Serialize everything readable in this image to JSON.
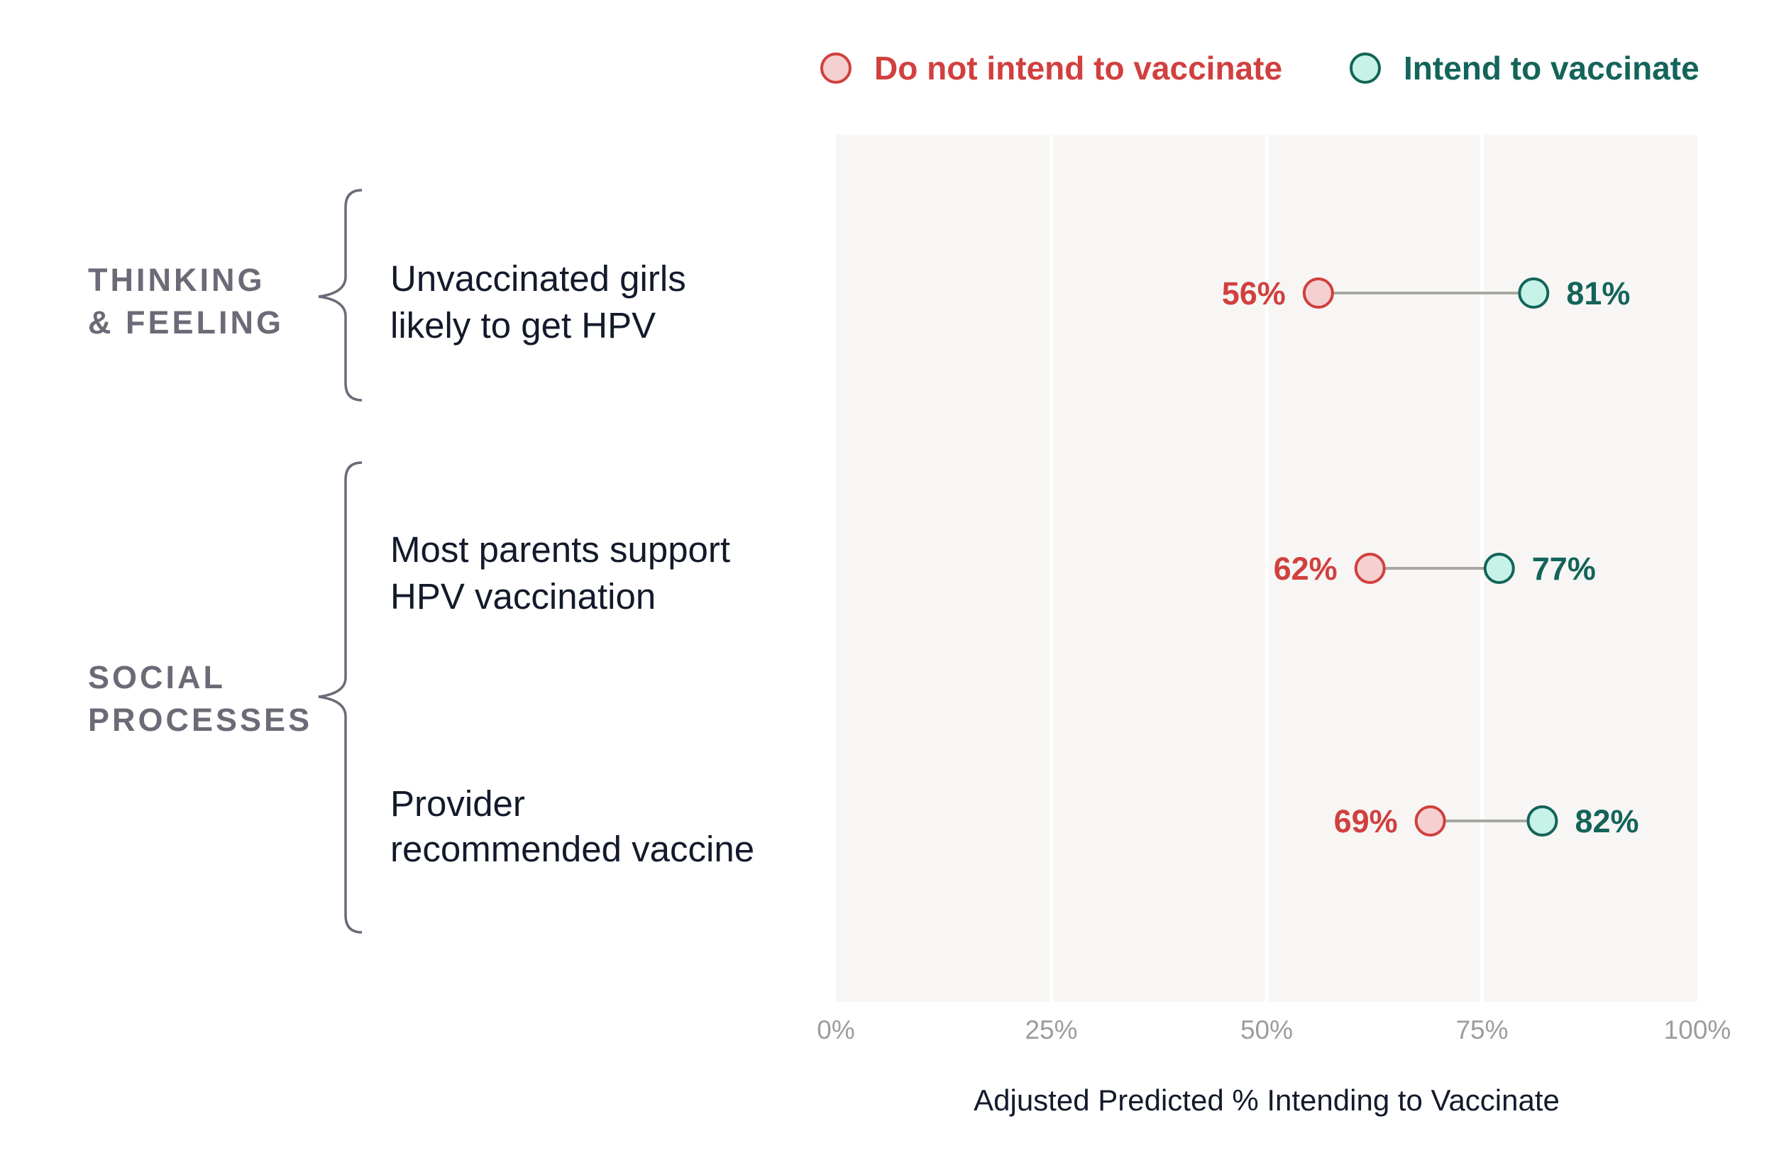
{
  "legend": [
    {
      "label": "Do not intend to vaccinate",
      "color": "#d1403f",
      "fill": "#f5d0d1"
    },
    {
      "label": "Intend to vaccinate",
      "color": "#14645a",
      "fill": "#c7f2e8"
    }
  ],
  "groups": [
    {
      "lines": [
        "THINKING",
        "& FEELING"
      ]
    },
    {
      "lines": [
        "SOCIAL",
        "PROCESSES"
      ]
    }
  ],
  "chart_data": {
    "type": "dumbbell",
    "xlabel": "Adjusted Predicted % Intending to Vaccinate",
    "xlim": [
      0,
      100
    ],
    "x_ticks": [
      0,
      25,
      50,
      75,
      100
    ],
    "x_tick_labels": [
      "0%",
      "25%",
      "50%",
      "75%",
      "100%"
    ],
    "grid": true,
    "legend_position": "top-right",
    "series": [
      {
        "name": "Do not intend to vaccinate",
        "color": "#d1403f"
      },
      {
        "name": "Intend to vaccinate",
        "color": "#14645a"
      }
    ],
    "rows": [
      {
        "lines": [
          "Unvaccinated girls",
          "likely to get HPV"
        ],
        "group": "THINKING & FEELING",
        "not_intend": 56,
        "not_intend_label": "56%",
        "intend": 81,
        "intend_label": "81%"
      },
      {
        "lines": [
          "Most parents support",
          "HPV vaccination"
        ],
        "group": "SOCIAL PROCESSES",
        "not_intend": 62,
        "not_intend_label": "62%",
        "intend": 77,
        "intend_label": "77%"
      },
      {
        "lines": [
          "Provider",
          "recommended vaccine"
        ],
        "group": "SOCIAL PROCESSES",
        "not_intend": 69,
        "not_intend_label": "69%",
        "intend": 82,
        "intend_label": "82%"
      }
    ]
  }
}
